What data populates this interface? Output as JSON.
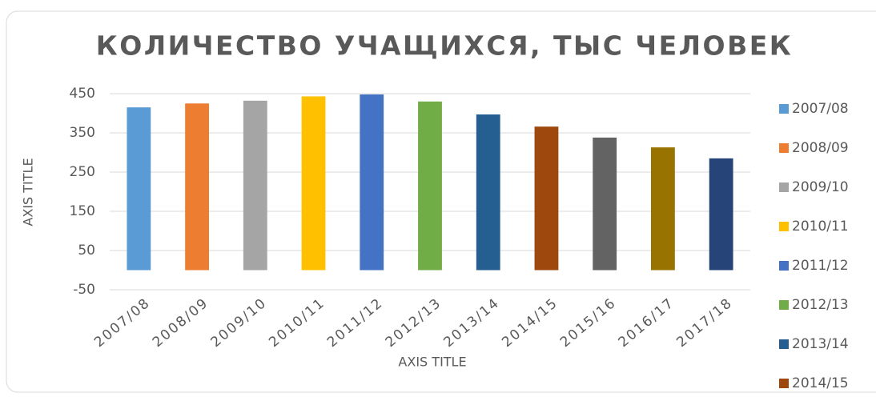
{
  "chart_data": {
    "type": "bar",
    "title": "КОЛИЧЕСТВО УЧАЩИХСЯ, ТЫС ЧЕЛОВЕК",
    "x_label": "AXIS TITLE",
    "y_label": "AXIS TITLE",
    "categories": [
      "2007/08",
      "2008/09",
      "2009/10",
      "2010/11",
      "2011/12",
      "2012/13",
      "2013/14",
      "2014/15",
      "2015/16",
      "2016/17",
      "2017/18"
    ],
    "values": [
      415,
      425,
      432,
      443,
      448,
      430,
      397,
      366,
      338,
      313,
      285
    ],
    "colors": [
      "#5b9bd5",
      "#ed7d31",
      "#a5a5a5",
      "#ffc000",
      "#4472c4",
      "#70ad47",
      "#255e91",
      "#9e480e",
      "#636363",
      "#997300",
      "#264478"
    ],
    "legend": [
      "2007/08",
      "2008/09",
      "2009/10",
      "2010/11",
      "2011/12",
      "2012/13",
      "2013/14",
      "2014/15"
    ],
    "ylim": [
      -50,
      450
    ],
    "yticks": [
      -50,
      50,
      150,
      250,
      350,
      450
    ],
    "grid": true
  }
}
